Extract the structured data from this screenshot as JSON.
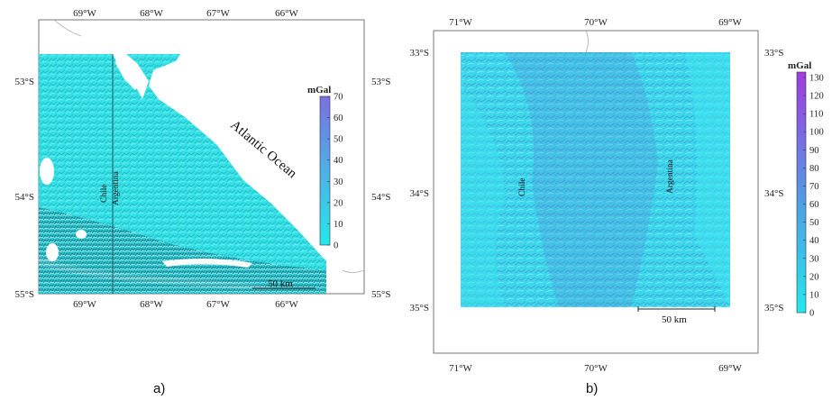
{
  "panel_a": {
    "caption": "a)",
    "lon_ticks": [
      "69°W",
      "68°W",
      "67°W",
      "66°W"
    ],
    "lat_ticks": [
      "53°S",
      "54°S",
      "55°S"
    ],
    "colorbar": {
      "unit": "mGal",
      "ticks": [
        "0",
        "10",
        "20",
        "30",
        "40",
        "50",
        "60",
        "70"
      ],
      "max_value": 70
    },
    "labels": {
      "ocean": "Atlantic Ocean",
      "country_1": "Chile",
      "country_2": "Argentina",
      "scale": "50 km"
    },
    "colors": {
      "low": "#22e8ec",
      "high": "#7a6fe0"
    }
  },
  "panel_b": {
    "caption": "b)",
    "lon_ticks": [
      "71°W",
      "70°W",
      "69°W"
    ],
    "lat_ticks": [
      "33°S",
      "34°S",
      "35°S"
    ],
    "colorbar": {
      "unit": "mGal",
      "ticks": [
        "0",
        "10",
        "20",
        "30",
        "40",
        "50",
        "60",
        "70",
        "80",
        "90",
        "100",
        "110",
        "120",
        "130"
      ],
      "max_value": 130
    },
    "labels": {
      "country_1": "Chile",
      "country_2": "Argentina",
      "scale": "50 km"
    },
    "colors": {
      "low": "#22e8ec",
      "high": "#a23be0"
    }
  }
}
